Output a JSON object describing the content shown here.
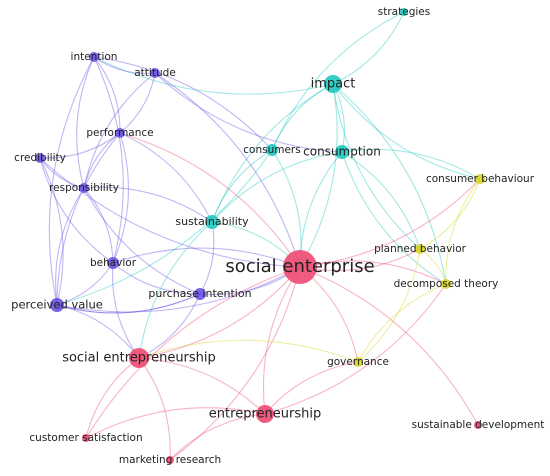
{
  "nodes": [
    {
      "label": "strategies",
      "color": "#1fc9c1"
    },
    {
      "label": "impact",
      "color": "#1fc9c1"
    },
    {
      "label": "intention",
      "color": "#6b52e3"
    },
    {
      "label": "attitude",
      "color": "#6b52e3"
    },
    {
      "label": "performance",
      "color": "#6b52e3"
    },
    {
      "label": "consumers",
      "color": "#1fc9c1"
    },
    {
      "label": "consumption",
      "color": "#1fc9c1"
    },
    {
      "label": "credibility",
      "color": "#6b52e3"
    },
    {
      "label": "consumer behaviour",
      "color": "#d6d41f"
    },
    {
      "label": "responsibility",
      "color": "#6b52e3"
    },
    {
      "label": "sustainability",
      "color": "#1fc9c1"
    },
    {
      "label": "planned behavior",
      "color": "#d6d41f"
    },
    {
      "label": "social enterprise",
      "color": "#ee4a72"
    },
    {
      "label": "behavior",
      "color": "#6b52e3"
    },
    {
      "label": "decomposed theory",
      "color": "#d6d41f"
    },
    {
      "label": "purchase intention",
      "color": "#6b52e3"
    },
    {
      "label": "perceived value",
      "color": "#6b52e3"
    },
    {
      "label": "social entrepreneurship",
      "color": "#ee4a72"
    },
    {
      "label": "governance",
      "color": "#d6d41f"
    },
    {
      "label": "entrepreneurship",
      "color": "#ee4a72"
    },
    {
      "label": "sustainable development",
      "color": "#ee4a72"
    },
    {
      "label": "customer satisfaction",
      "color": "#ee4a72"
    },
    {
      "label": "marketing research",
      "color": "#ee4a72"
    }
  ]
}
